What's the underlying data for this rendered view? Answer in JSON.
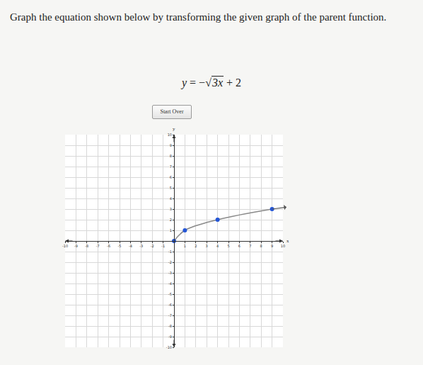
{
  "header": {
    "prompt": "Graph the equation shown below by transforming the given graph of the parent function.",
    "equation": {
      "lhs": "y",
      "equals": "=",
      "sign": "−",
      "radical": "√",
      "radicand": "3x",
      "rest": "+ 2"
    },
    "button": "Start Over"
  },
  "chart_data": {
    "type": "line",
    "x_label": "x",
    "y_label": "y",
    "x": [
      0,
      1,
      4,
      9
    ],
    "values": [
      0,
      1,
      2,
      3
    ],
    "color": "#2456d6",
    "marker": "circle",
    "xlim": [
      -10,
      10
    ],
    "ylim": [
      -10,
      10
    ],
    "xticks": [
      -10,
      -9,
      -8,
      -7,
      -6,
      -5,
      -4,
      -3,
      -2,
      -1,
      1,
      2,
      3,
      4,
      5,
      6,
      7,
      8,
      9,
      10
    ],
    "yticks": [
      -10,
      -9,
      -8,
      -7,
      -6,
      -5,
      -4,
      -3,
      -2,
      -1,
      1,
      2,
      3,
      4,
      5,
      6,
      7,
      8,
      9,
      10
    ],
    "grid": true
  }
}
